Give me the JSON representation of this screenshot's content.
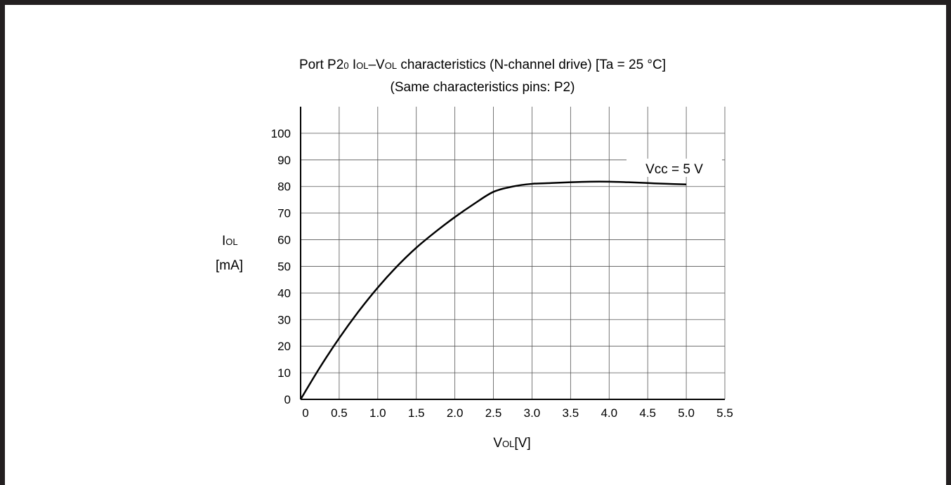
{
  "chart_data": {
    "type": "line",
    "title": {
      "prefix": "Port P2",
      "prefix_sub": "0",
      "i": "I",
      "i_sub": "OL",
      "dash": "–V",
      "v_sub": "OL",
      "rest": " characteristics (N-channel drive) [Ta = 25 °C]"
    },
    "subtitle": "(Same characteristics pins: P2)",
    "xlabel": {
      "v": "V",
      "v_sub": "OL",
      "unit": "[V]"
    },
    "ylabel": {
      "i": "I",
      "i_sub": "OL",
      "unit": "[mA]"
    },
    "xlim": [
      0,
      5.5
    ],
    "ylim": [
      0,
      110
    ],
    "x_ticks": [
      0,
      0.5,
      1.0,
      1.5,
      2.0,
      2.5,
      3.0,
      3.5,
      4.0,
      4.5,
      5.0,
      5.5
    ],
    "x_tick_labels": [
      "0",
      "0.5",
      "1.0",
      "1.5",
      "2.0",
      "2.5",
      "3.0",
      "3.5",
      "4.0",
      "4.5",
      "5.0",
      "5.5"
    ],
    "y_ticks": [
      0,
      10,
      20,
      30,
      40,
      50,
      60,
      70,
      80,
      90,
      100
    ],
    "y_tick_labels": [
      "0",
      "10",
      "20",
      "30",
      "40",
      "50",
      "60",
      "70",
      "80",
      "90",
      "100"
    ],
    "grid": true,
    "series": [
      {
        "name": "Vcc = 5 V",
        "x": [
          0,
          0.25,
          0.5,
          0.75,
          1.0,
          1.25,
          1.5,
          1.75,
          2.0,
          2.25,
          2.5,
          2.75,
          3.0,
          3.25,
          3.5,
          3.75,
          4.0,
          4.25,
          4.5,
          4.75,
          5.0
        ],
        "y": [
          0,
          12,
          23,
          33,
          42,
          50,
          57,
          63,
          68.5,
          73.5,
          78,
          80,
          81,
          81.3,
          81.6,
          81.8,
          81.8,
          81.6,
          81.3,
          81,
          80.8
        ]
      }
    ]
  }
}
